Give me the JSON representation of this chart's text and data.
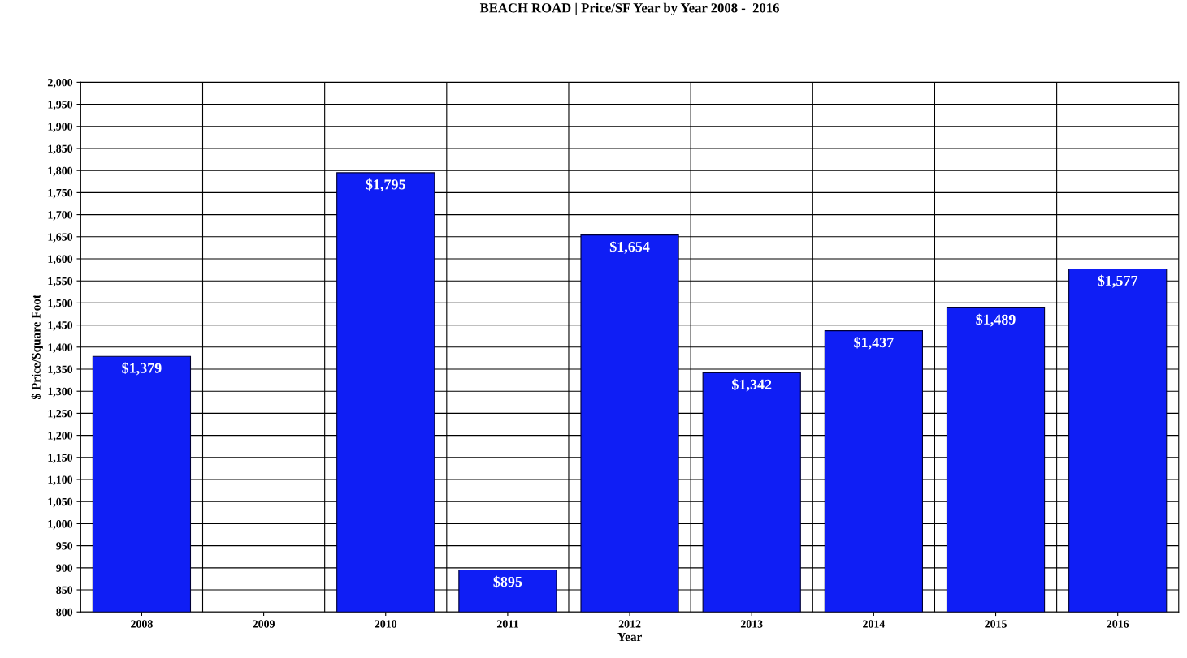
{
  "chart_data": {
    "type": "bar",
    "title": "BEACH ROAD | Price/SF Year by Year 2008 -  2016",
    "xlabel": "Year",
    "ylabel": "$ Price/Square Foot",
    "categories": [
      "2008",
      "2009",
      "2010",
      "2011",
      "2012",
      "2013",
      "2014",
      "2015",
      "2016"
    ],
    "series": [
      {
        "color": "#0f1ef5",
        "values": [
          1379,
          null,
          1795,
          895,
          1654,
          1342,
          1437,
          1489,
          1577
        ],
        "value_labels": [
          "$1,379",
          null,
          "$1,795",
          "$895",
          "$1,654",
          "$1,342",
          "$1,437",
          "$1,489",
          "$1,577"
        ]
      }
    ],
    "ylim": [
      800,
      2000
    ],
    "yticks": [
      800,
      850,
      900,
      950,
      {
        "value": 1000,
        "label": "1,000"
      },
      {
        "value": 1050,
        "label": "1,050"
      },
      {
        "value": 1100,
        "label": "1,100"
      },
      {
        "value": 1150,
        "label": "1,150"
      },
      {
        "value": 1200,
        "label": "1,200"
      },
      {
        "value": 1250,
        "label": "1,250"
      },
      {
        "value": 1300,
        "label": "1,300"
      },
      {
        "value": 1350,
        "label": "1,350"
      },
      {
        "value": 1400,
        "label": "1,400"
      },
      {
        "value": 1450,
        "label": "1,450"
      },
      {
        "value": 1500,
        "label": "1,500"
      },
      {
        "value": 1550,
        "label": "1,550"
      },
      {
        "value": 1600,
        "label": "1,600"
      },
      {
        "value": 1650,
        "label": "1,650"
      },
      {
        "value": 1700,
        "label": "1,700"
      },
      {
        "value": 1750,
        "label": "1,750"
      },
      {
        "value": 1800,
        "label": "1,800"
      },
      {
        "value": 1850,
        "label": "1,850"
      },
      {
        "value": 1900,
        "label": "1,900"
      },
      {
        "value": 1950,
        "label": "1,950"
      },
      {
        "value": 2000,
        "label": "2,000"
      }
    ],
    "grid": true
  }
}
